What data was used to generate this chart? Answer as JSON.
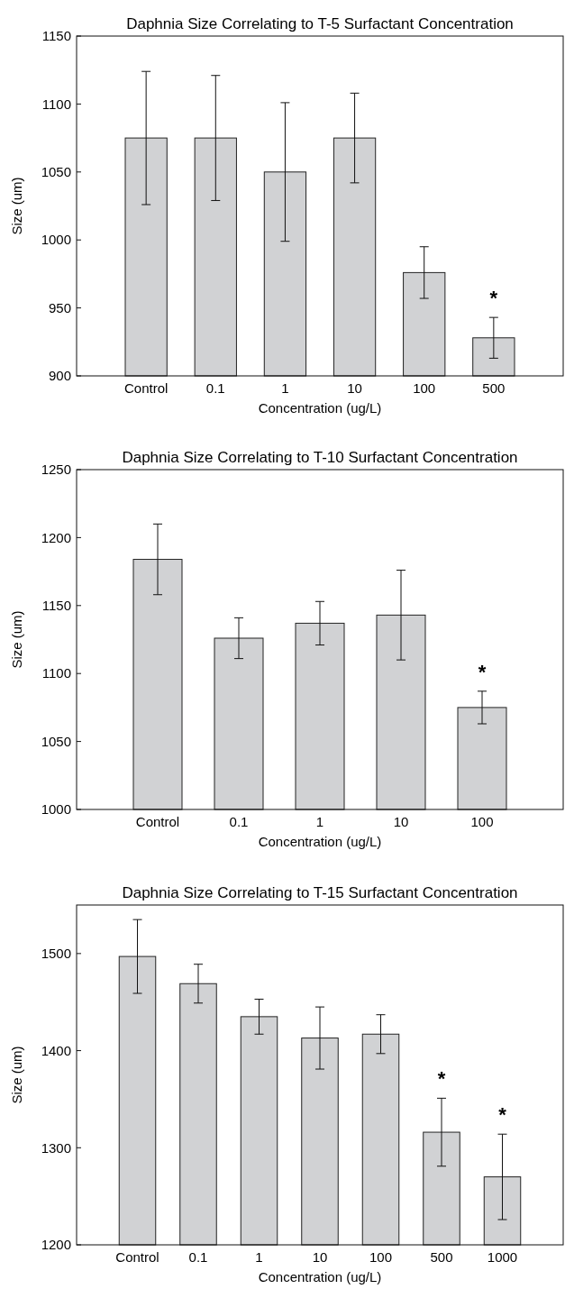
{
  "chart_data": [
    {
      "type": "bar",
      "title": "Daphnia Size Correlating to T-5 Surfactant Concentration",
      "xlabel": "Concentration (ug/L)",
      "ylabel": "Size (um)",
      "categories": [
        "Control",
        "0.1",
        "1",
        "10",
        "100",
        "500"
      ],
      "values": [
        1075,
        1075,
        1050,
        1075,
        976,
        928
      ],
      "errors": [
        49,
        46,
        51,
        33,
        19,
        15
      ],
      "color": "#d1d2d4",
      "ylim": [
        900,
        1150
      ],
      "yticks": [
        900,
        950,
        1000,
        1050,
        1100,
        1150
      ],
      "annotations": [
        "*"
      ]
    },
    {
      "type": "bar",
      "title": "Daphnia Size Correlating to T-10 Surfactant Concentration",
      "xlabel": "Concentration (ug/L)",
      "ylabel": "Size (um)",
      "categories": [
        "Control",
        "0.1",
        "1",
        "10",
        "100"
      ],
      "values": [
        1184,
        1126,
        1137,
        1143,
        1075
      ],
      "errors": [
        26,
        15,
        16,
        33,
        12
      ],
      "color": "#d1d2d4",
      "ylim": [
        1000,
        1250
      ],
      "yticks": [
        1000,
        1050,
        1100,
        1150,
        1200,
        1250
      ],
      "annotations": [
        "*"
      ]
    },
    {
      "type": "bar",
      "title": "Daphnia Size Correlating to T-15 Surfactant Concentration",
      "xlabel": "Concentration (ug/L)",
      "ylabel": "Size (um)",
      "categories": [
        "Control",
        "0.1",
        "1",
        "10",
        "100",
        "500",
        "1000"
      ],
      "values": [
        1497,
        1469,
        1435,
        1413,
        1417,
        1316,
        1270
      ],
      "errors": [
        38,
        20,
        18,
        32,
        20,
        35,
        44
      ],
      "color": "#d1d2d4",
      "ylim": [
        1200,
        1550
      ],
      "yticks": [
        1200,
        1300,
        1400,
        1500
      ],
      "annotations": [
        "*",
        "*"
      ]
    }
  ]
}
